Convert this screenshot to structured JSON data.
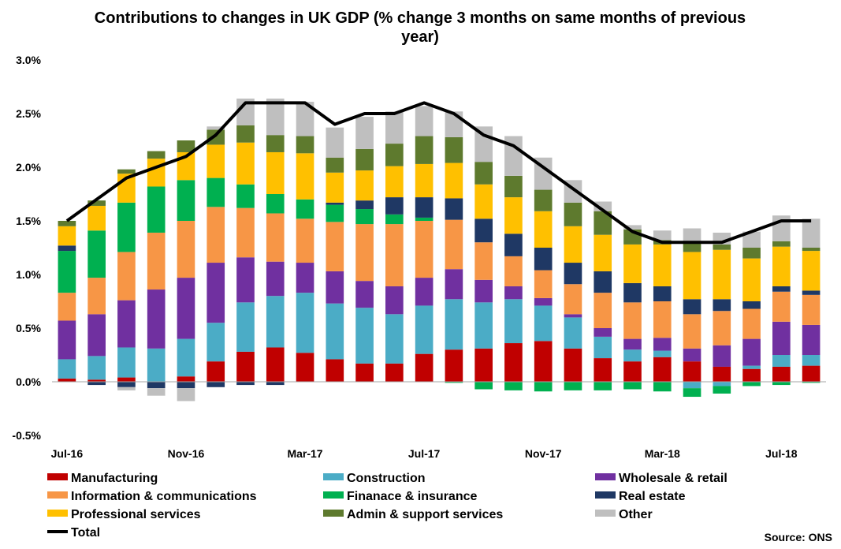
{
  "chart_data": {
    "type": "bar",
    "stacked": true,
    "title_line1": "Contributions to changes in UK GDP (% change 3 months on same months of previous",
    "title_line2": "year)",
    "xlabel": "",
    "ylabel": "",
    "ylim": [
      -0.5,
      3.0
    ],
    "y_ticks": [
      -0.5,
      0.0,
      0.5,
      1.0,
      1.5,
      2.0,
      2.5,
      3.0
    ],
    "y_tick_labels": [
      "-0.5%",
      "0.0%",
      "0.5%",
      "1.0%",
      "1.5%",
      "2.0%",
      "2.5%",
      "3.0%"
    ],
    "categories": [
      "Jul-16",
      "Aug-16",
      "Sep-16",
      "Oct-16",
      "Nov-16",
      "Dec-16",
      "Jan-17",
      "Feb-17",
      "Mar-17",
      "Apr-17",
      "May-17",
      "Jun-17",
      "Jul-17",
      "Aug-17",
      "Sep-17",
      "Oct-17",
      "Nov-17",
      "Dec-17",
      "Jan-18",
      "Feb-18",
      "Mar-18",
      "Apr-18",
      "May-18",
      "Jun-18",
      "Jul-18",
      "Aug-18"
    ],
    "x_tick_labels": [
      {
        "index": 0,
        "label": "Jul-16"
      },
      {
        "index": 4,
        "label": "Nov-16"
      },
      {
        "index": 8,
        "label": "Mar-17"
      },
      {
        "index": 12,
        "label": "Jul-17"
      },
      {
        "index": 16,
        "label": "Nov-17"
      },
      {
        "index": 20,
        "label": "Mar-18"
      },
      {
        "index": 24,
        "label": "Jul-18"
      }
    ],
    "series": [
      {
        "name": "Manufacturing",
        "color": "#C00000",
        "values": [
          0.03,
          0.02,
          0.04,
          0.0,
          0.05,
          0.19,
          0.28,
          0.32,
          0.27,
          0.21,
          0.17,
          0.17,
          0.26,
          0.3,
          0.31,
          0.36,
          0.38,
          0.31,
          0.22,
          0.19,
          0.23,
          0.19,
          0.14,
          0.12,
          0.14,
          0.15
        ]
      },
      {
        "name": "Construction",
        "color": "#4BACC6",
        "values": [
          0.18,
          0.22,
          0.28,
          0.31,
          0.35,
          0.36,
          0.46,
          0.48,
          0.56,
          0.52,
          0.52,
          0.46,
          0.45,
          0.47,
          0.43,
          0.41,
          0.33,
          0.29,
          0.2,
          0.11,
          0.06,
          -0.06,
          -0.04,
          0.03,
          0.11,
          0.1
        ]
      },
      {
        "name": "Wholesale & retail",
        "color": "#7030A0",
        "values": [
          0.36,
          0.39,
          0.44,
          0.55,
          0.57,
          0.56,
          0.42,
          0.32,
          0.28,
          0.3,
          0.25,
          0.26,
          0.26,
          0.28,
          0.21,
          0.12,
          0.07,
          0.03,
          0.08,
          0.1,
          0.12,
          0.12,
          0.2,
          0.25,
          0.31,
          0.28
        ]
      },
      {
        "name": "Information & communications",
        "color": "#F79646",
        "values": [
          0.26,
          0.34,
          0.45,
          0.53,
          0.53,
          0.52,
          0.46,
          0.45,
          0.41,
          0.46,
          0.53,
          0.58,
          0.53,
          0.46,
          0.35,
          0.28,
          0.26,
          0.28,
          0.33,
          0.34,
          0.34,
          0.32,
          0.32,
          0.28,
          0.28,
          0.28
        ]
      },
      {
        "name": "Finanace & insurance",
        "color": "#00B050",
        "values": [
          0.39,
          0.44,
          0.46,
          0.43,
          0.38,
          0.27,
          0.22,
          0.18,
          0.18,
          0.16,
          0.14,
          0.09,
          0.03,
          -0.01,
          -0.07,
          -0.08,
          -0.09,
          -0.08,
          -0.08,
          -0.07,
          -0.09,
          -0.08,
          -0.07,
          -0.04,
          -0.03,
          -0.01
        ]
      },
      {
        "name": "Real estate",
        "color": "#1F3864",
        "values": [
          0.05,
          -0.03,
          -0.05,
          -0.06,
          -0.06,
          -0.05,
          -0.03,
          -0.03,
          0.0,
          0.02,
          0.08,
          0.16,
          0.19,
          0.2,
          0.22,
          0.21,
          0.21,
          0.2,
          0.2,
          0.18,
          0.14,
          0.14,
          0.11,
          0.07,
          0.05,
          0.04
        ]
      },
      {
        "name": "Professional services",
        "color": "#FFC000",
        "values": [
          0.18,
          0.23,
          0.27,
          0.26,
          0.26,
          0.31,
          0.39,
          0.39,
          0.43,
          0.28,
          0.28,
          0.29,
          0.31,
          0.33,
          0.32,
          0.34,
          0.34,
          0.34,
          0.34,
          0.36,
          0.39,
          0.44,
          0.46,
          0.4,
          0.37,
          0.37
        ]
      },
      {
        "name": "Admin & support services",
        "color": "#5E7A2E",
        "values": [
          0.05,
          0.05,
          0.04,
          0.07,
          0.11,
          0.14,
          0.16,
          0.16,
          0.16,
          0.14,
          0.2,
          0.21,
          0.26,
          0.24,
          0.21,
          0.2,
          0.2,
          0.22,
          0.22,
          0.14,
          0.04,
          0.1,
          0.05,
          0.1,
          0.05,
          0.03
        ]
      },
      {
        "name": "Other",
        "color": "#BFBFBF",
        "values": [
          0.0,
          0.0,
          -0.03,
          -0.07,
          -0.12,
          0.03,
          0.25,
          0.34,
          0.32,
          0.28,
          0.3,
          0.3,
          0.28,
          0.24,
          0.33,
          0.37,
          0.3,
          0.21,
          0.09,
          0.04,
          0.09,
          0.12,
          0.11,
          0.15,
          0.24,
          0.27
        ]
      }
    ],
    "total": {
      "name": "Total",
      "color": "#000000",
      "values": [
        1.5,
        1.7,
        1.9,
        2.0,
        2.1,
        2.3,
        2.6,
        2.6,
        2.6,
        2.4,
        2.5,
        2.5,
        2.6,
        2.5,
        2.3,
        2.2,
        2.0,
        1.8,
        1.6,
        1.4,
        1.3,
        1.3,
        1.3,
        1.4,
        1.5,
        1.5
      ]
    },
    "legend_position": "bottom",
    "source": "Source: ONS"
  }
}
